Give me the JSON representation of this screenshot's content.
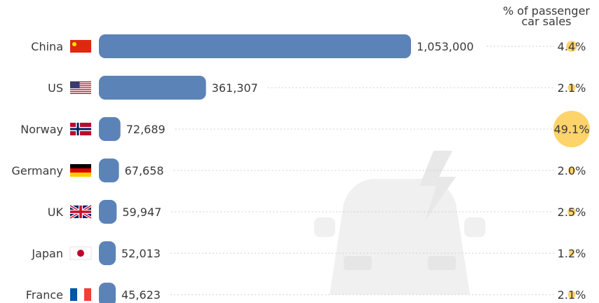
{
  "share_header": [
    "% of passenger",
    "car sales"
  ],
  "colors": {
    "bar": "#5b83b8",
    "share_bubble": "#fdd36b",
    "dotted_line": "#cfcfcf",
    "watermark": "#f0f0f0",
    "text": "#3a3a3a"
  },
  "chart_data": {
    "type": "bar",
    "orientation": "horizontal",
    "categories": [
      "China",
      "US",
      "Norway",
      "Germany",
      "UK",
      "Japan",
      "France"
    ],
    "values": [
      1053000,
      361307,
      72689,
      67658,
      59947,
      52013,
      45623
    ],
    "value_labels": [
      "1,053,000",
      "361,307",
      "72,689",
      "67,658",
      "59,947",
      "52,013",
      "45,623"
    ],
    "share_values": [
      4.4,
      2.1,
      49.1,
      2.0,
      2.5,
      1.2,
      2.1
    ],
    "share_labels": [
      "4.4%",
      "2.1%",
      "49.1%",
      "2.0%",
      "2.5%",
      "1.2%",
      "2.1%"
    ],
    "flags": [
      "flag-china-icon",
      "flag-us-icon",
      "flag-norway-icon",
      "flag-germany-icon",
      "flag-uk-icon",
      "flag-japan-icon",
      "flag-france-icon"
    ],
    "xlim": [
      0,
      1053000
    ]
  }
}
